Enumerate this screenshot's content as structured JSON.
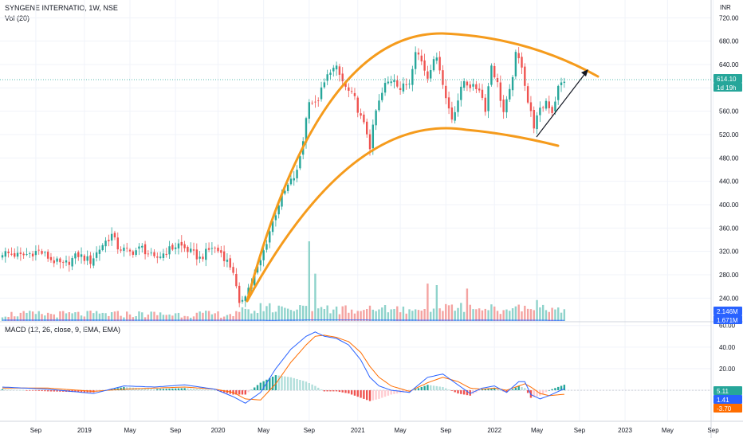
{
  "header": {
    "symbol_line": "SYNGENE INTERNATIO, 1W, NSE",
    "volume_label": "Vol (20)",
    "currency": "INR",
    "macd_label": "MACD (12, 26, close, 9, EMA, EMA)"
  },
  "badges": {
    "last_price": "614.10",
    "countdown": "1d 19h",
    "volume_value": "2.146M",
    "volume_ma": "1.671M",
    "macd_hist": "5.11",
    "macd_line": "1.41",
    "macd_signal": "-3.70"
  },
  "colors": {
    "up": "#26a69a",
    "down": "#ef5350",
    "pattern": "#f59b1c",
    "macd_line": "#2962ff",
    "signal_line": "#ff6d00",
    "volume_ma": "#2962ff",
    "price_line": "#26a69a"
  },
  "chart_data": [
    {
      "type": "candlestick",
      "name": "price",
      "x_axis_labels": [
        "Sep",
        "2019",
        "May",
        "Sep",
        "2020",
        "May",
        "Sep",
        "2021",
        "May",
        "Sep",
        "2022",
        "May",
        "Sep",
        "2023",
        "May",
        "Sep"
      ],
      "y_ticks": [
        240,
        280,
        320,
        360,
        400,
        440,
        480,
        520,
        560,
        600,
        640,
        680,
        720
      ],
      "ylim": [
        205,
        745
      ],
      "last_price": 614.1,
      "close_anchors": [
        [
          0,
          318
        ],
        [
          6,
          312
        ],
        [
          12,
          321
        ],
        [
          16,
          306
        ],
        [
          20,
          296
        ],
        [
          25,
          314
        ],
        [
          29,
          303
        ],
        [
          33,
          332
        ],
        [
          36,
          348
        ],
        [
          38,
          327
        ],
        [
          42,
          318
        ],
        [
          46,
          326
        ],
        [
          50,
          306
        ],
        [
          54,
          320
        ],
        [
          58,
          332
        ],
        [
          61,
          322
        ],
        [
          65,
          308
        ],
        [
          69,
          327
        ],
        [
          72,
          318
        ],
        [
          76,
          287
        ],
        [
          78,
          225
        ],
        [
          79,
          240
        ],
        [
          82,
          266
        ],
        [
          85,
          303
        ],
        [
          88,
          355
        ],
        [
          91,
          402
        ],
        [
          94,
          432
        ],
        [
          97,
          455
        ],
        [
          99,
          512
        ],
        [
          101,
          582
        ],
        [
          103,
          570
        ],
        [
          105,
          595
        ],
        [
          108,
          632
        ],
        [
          110,
          632
        ],
        [
          113,
          600
        ],
        [
          116,
          580
        ],
        [
          118,
          548
        ],
        [
          120,
          523
        ],
        [
          121,
          500
        ],
        [
          123,
          560
        ],
        [
          126,
          605
        ],
        [
          129,
          618
        ],
        [
          131,
          598
        ],
        [
          134,
          610
        ],
        [
          136,
          668
        ],
        [
          138,
          645
        ],
        [
          140,
          618
        ],
        [
          142,
          655
        ],
        [
          144,
          636
        ],
        [
          146,
          582
        ],
        [
          148,
          548
        ],
        [
          150,
          580
        ],
        [
          152,
          612
        ],
        [
          155,
          600
        ],
        [
          157,
          600
        ],
        [
          159,
          565
        ],
        [
          161,
          640
        ],
        [
          163,
          606
        ],
        [
          165,
          558
        ],
        [
          167,
          592
        ],
        [
          169,
          655
        ],
        [
          171,
          640
        ],
        [
          173,
          576
        ],
        [
          175,
          536
        ],
        [
          177,
          560
        ],
        [
          179,
          578
        ],
        [
          181,
          560
        ],
        [
          183,
          600
        ],
        [
          185,
          614
        ]
      ],
      "volume_ma_anchor": [
        [
          0,
          210
        ],
        [
          40,
          195
        ],
        [
          70,
          195
        ],
        [
          80,
          190
        ],
        [
          90,
          170
        ],
        [
          100,
          245
        ],
        [
          120,
          240
        ],
        [
          140,
          190
        ],
        [
          160,
          200
        ],
        [
          185,
          170
        ]
      ]
    },
    {
      "type": "bar",
      "name": "volume",
      "last_value": "2.146M",
      "ma_value": "1.671M",
      "spike_values": [
        [
          101,
          1600
        ],
        [
          103,
          950
        ],
        [
          140,
          750
        ],
        [
          143,
          720
        ],
        [
          153,
          650
        ],
        [
          176,
          420
        ]
      ]
    },
    {
      "type": "line",
      "name": "MACD",
      "y_ticks": [
        60,
        40,
        20,
        0
      ],
      "ylim": [
        -28,
        62
      ],
      "macd": [
        [
          0,
          3
        ],
        [
          15,
          1
        ],
        [
          30,
          -3
        ],
        [
          40,
          4
        ],
        [
          50,
          3
        ],
        [
          60,
          5
        ],
        [
          70,
          1
        ],
        [
          76,
          -6
        ],
        [
          80,
          -12
        ],
        [
          85,
          -2
        ],
        [
          90,
          20
        ],
        [
          95,
          38
        ],
        [
          100,
          50
        ],
        [
          103,
          54
        ],
        [
          106,
          50
        ],
        [
          110,
          48
        ],
        [
          114,
          42
        ],
        [
          118,
          28
        ],
        [
          121,
          12
        ],
        [
          124,
          4
        ],
        [
          128,
          0
        ],
        [
          134,
          -2
        ],
        [
          140,
          12
        ],
        [
          145,
          15
        ],
        [
          150,
          5
        ],
        [
          154,
          -3
        ],
        [
          158,
          2
        ],
        [
          162,
          4
        ],
        [
          166,
          -2
        ],
        [
          170,
          8
        ],
        [
          172,
          8
        ],
        [
          174,
          -4
        ],
        [
          177,
          -8
        ],
        [
          180,
          -5
        ],
        [
          185,
          1.41
        ]
      ],
      "signal": [
        [
          0,
          2
        ],
        [
          15,
          2
        ],
        [
          30,
          -1
        ],
        [
          40,
          1
        ],
        [
          50,
          2
        ],
        [
          60,
          3
        ],
        [
          70,
          1
        ],
        [
          76,
          -2
        ],
        [
          80,
          -8
        ],
        [
          85,
          -9
        ],
        [
          90,
          6
        ],
        [
          95,
          26
        ],
        [
          100,
          42
        ],
        [
          103,
          50
        ],
        [
          106,
          51
        ],
        [
          110,
          49
        ],
        [
          114,
          45
        ],
        [
          118,
          35
        ],
        [
          121,
          22
        ],
        [
          124,
          12
        ],
        [
          128,
          4
        ],
        [
          134,
          -1
        ],
        [
          140,
          7
        ],
        [
          145,
          12
        ],
        [
          150,
          8
        ],
        [
          154,
          2
        ],
        [
          158,
          1
        ],
        [
          162,
          2
        ],
        [
          166,
          0
        ],
        [
          170,
          4
        ],
        [
          172,
          6
        ],
        [
          174,
          3
        ],
        [
          177,
          -3
        ],
        [
          180,
          -5
        ],
        [
          185,
          -3.7
        ]
      ],
      "histogram_last": 5.11
    }
  ]
}
